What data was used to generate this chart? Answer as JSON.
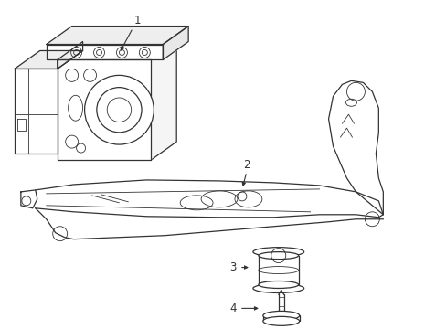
{
  "background_color": "#ffffff",
  "line_color": "#333333",
  "lw": 0.9,
  "tlw": 0.6,
  "label_fontsize": 8.5,
  "fig_w": 4.89,
  "fig_h": 3.6,
  "dpi": 100
}
